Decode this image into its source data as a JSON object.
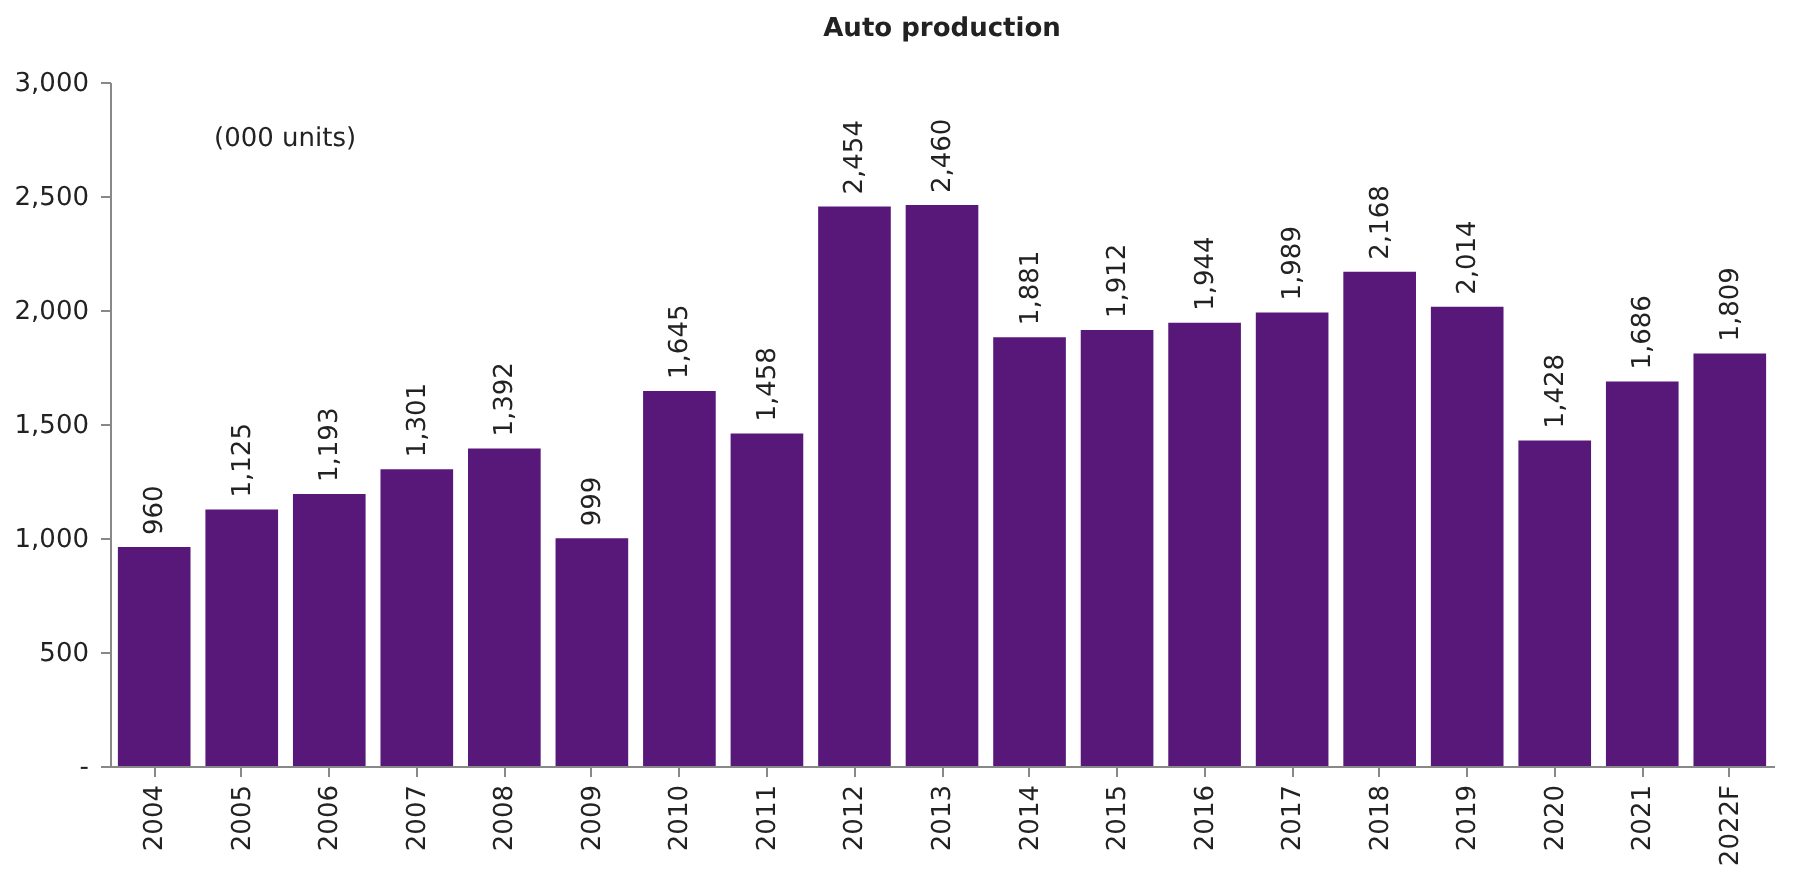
{
  "chart_data": {
    "type": "bar",
    "title": "Auto production",
    "annotations": [
      "(000 units)"
    ],
    "categories": [
      "2004",
      "2005",
      "2006",
      "2007",
      "2008",
      "2009",
      "2010",
      "2011",
      "2012",
      "2013",
      "2014",
      "2015",
      "2016",
      "2017",
      "2018",
      "2019",
      "2020",
      "2021",
      "2022F"
    ],
    "values": [
      960,
      1125,
      1193,
      1301,
      1392,
      999,
      1645,
      1458,
      2454,
      2460,
      1881,
      1912,
      1944,
      1989,
      2168,
      2014,
      1428,
      1686,
      1809
    ],
    "value_labels": [
      "960",
      "1,125",
      "1,193",
      "1,301",
      "1,392",
      "999",
      "1,645",
      "1,458",
      "2,454",
      "2,460",
      "1,881",
      "1,912",
      "1,944",
      "1,989",
      "2,168",
      "2,014",
      "1,428",
      "1,686",
      "1,809"
    ],
    "color": "#58187a",
    "ylim": [
      0,
      3000
    ],
    "yticks": [
      {
        "value": 0,
        "label": "-"
      },
      {
        "value": 500,
        "label": "500"
      },
      {
        "value": 1000,
        "label": "1,000"
      },
      {
        "value": 1500,
        "label": "1,500"
      },
      {
        "value": 2000,
        "label": "2,000"
      },
      {
        "value": 2500,
        "label": "2,500"
      },
      {
        "value": 3000,
        "label": "3,000"
      }
    ],
    "grid": false
  }
}
